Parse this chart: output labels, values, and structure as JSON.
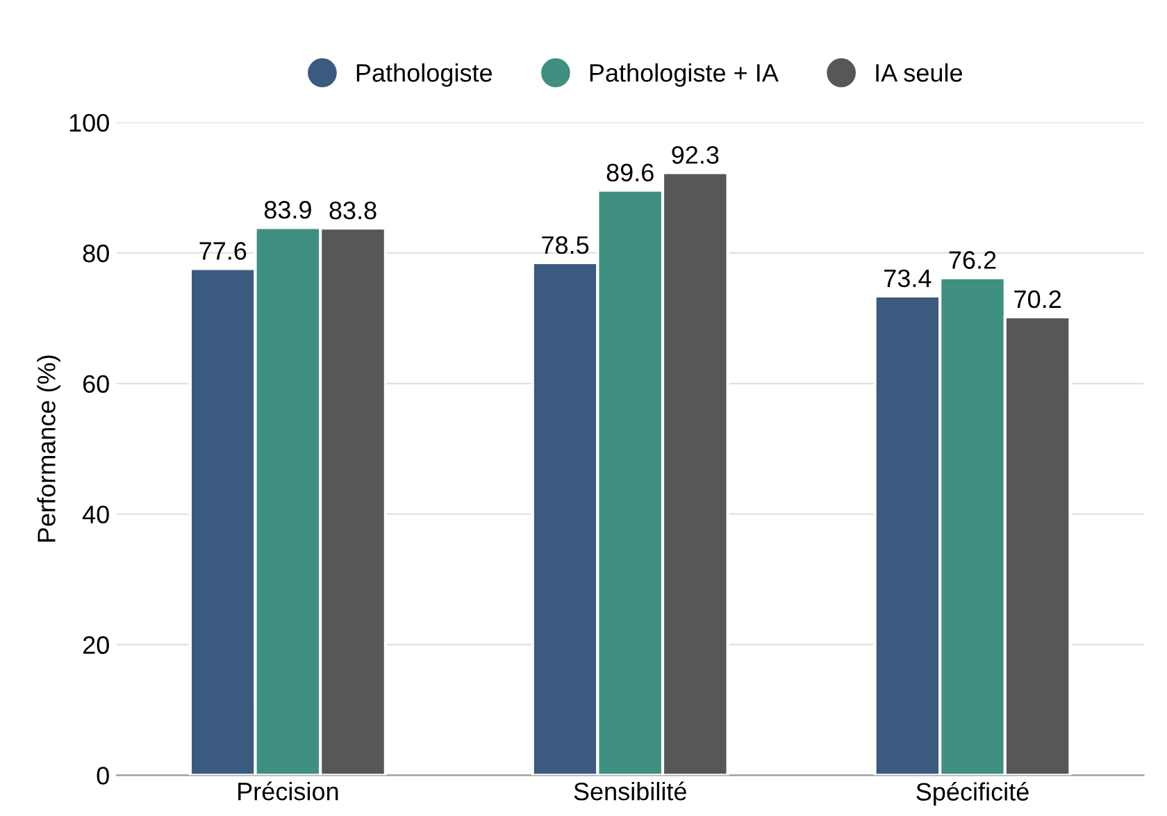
{
  "chart_data": {
    "type": "bar",
    "ylabel": "Performance (%)",
    "categories": [
      "Précision",
      "Sensibilité",
      "Spécificité"
    ],
    "series": [
      {
        "name": "Pathologiste",
        "color": "#3a5a80",
        "values": [
          77.6,
          78.5,
          73.4
        ]
      },
      {
        "name": "Pathologiste + IA",
        "color": "#3f9080",
        "values": [
          83.9,
          89.6,
          76.2
        ]
      },
      {
        "name": "IA seule",
        "color": "#575757",
        "values": [
          83.8,
          92.3,
          70.2
        ]
      }
    ],
    "ylim": [
      0,
      100
    ],
    "yticks": [
      0,
      20,
      40,
      60,
      80,
      100
    ],
    "grid": "y",
    "legend": "top",
    "data_labels": true
  }
}
